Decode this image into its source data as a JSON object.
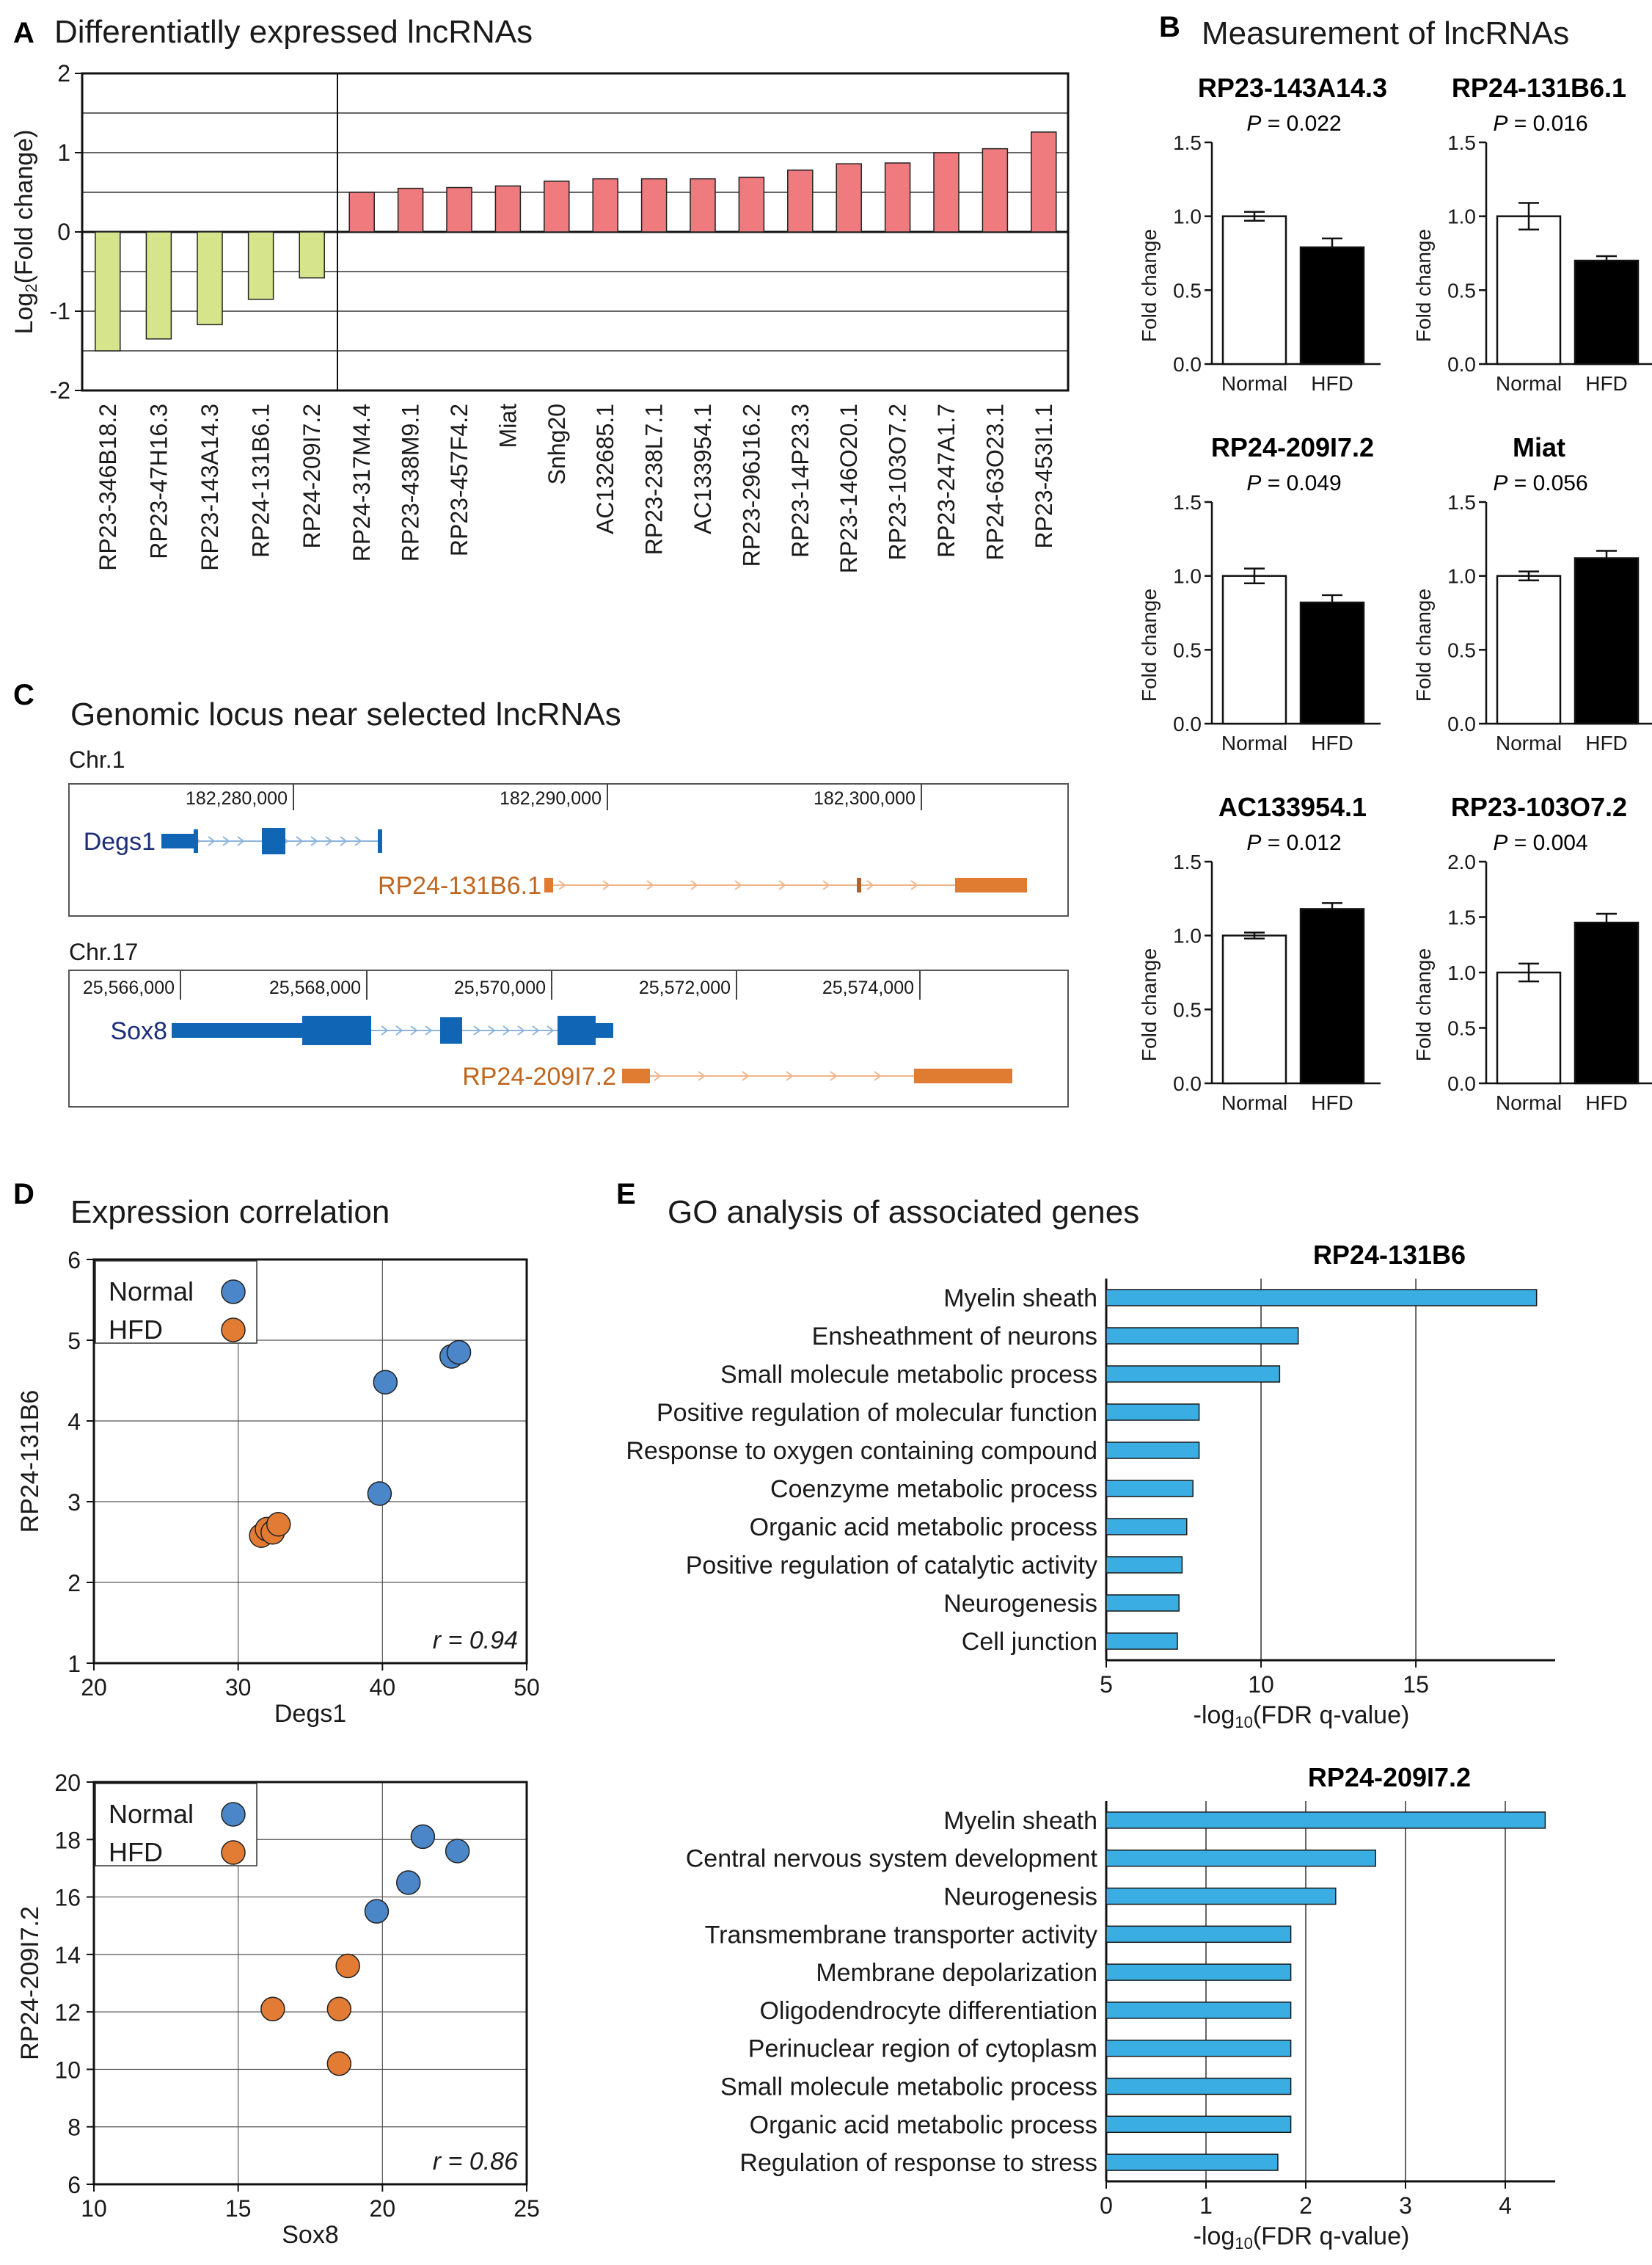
{
  "panel_a": {
    "letter": "A",
    "title": "Differentiatlly expressed lncRNAs"
  },
  "panel_b": {
    "letter": "B",
    "title": "Measurement of lncRNAs"
  },
  "panel_c": {
    "letter": "C",
    "title": "Genomic locus near selected lncRNAs"
  },
  "panel_d": {
    "letter": "D",
    "title": "Expression correlation"
  },
  "panel_e": {
    "letter": "E",
    "title": "GO analysis of associated genes"
  },
  "locus": {
    "chr1": {
      "chrom": "Chr.1",
      "coords": [
        "182,280,000",
        "182,290,000",
        "182,300,000"
      ],
      "gene": "Degs1",
      "lnc": "RP24-131B6.1"
    },
    "chr17": {
      "chrom": "Chr.17",
      "coords": [
        "25,566,000",
        "25,568,000",
        "25,570,000",
        "25,572,000",
        "25,574,000"
      ],
      "gene": "Sox8",
      "lnc": "RP24-209I7.2"
    }
  },
  "colors": {
    "down": "#d6e58c",
    "up": "#ef7b7e",
    "gene_blue": "#1066b5",
    "lnc_orange": "#e07b32",
    "normal": "#4a86c8",
    "hfd": "#e27b34",
    "go_bar": "#3aaee2",
    "gene_text": "#1c2e78",
    "lnc_text": "#c0661f"
  },
  "chart_data": [
    {
      "id": "A",
      "type": "bar",
      "title": "Differentiatlly expressed lncRNAs",
      "ylabel": "Log2(Fold change)",
      "ylim": [
        -2,
        2
      ],
      "yticks": [
        -2,
        -1,
        0,
        1,
        2
      ],
      "categories": [
        "RP23-346B18.2",
        "RP23-47H16.3",
        "RP23-143A14.3",
        "RP24-131B6.1",
        "RP24-209I7.2",
        "RP24-317M4.4",
        "RP23-438M9.1",
        "RP23-457F4.2",
        "Miat",
        "Snhg20",
        "AC132685.1",
        "RP23-238L7.1",
        "AC133954.1",
        "RP23-296J16.2",
        "RP23-14P23.3",
        "RP23-146O20.1",
        "RP23-103O7.2",
        "RP23-247A1.7",
        "RP24-63O23.1",
        "RP23-453I1.1"
      ],
      "values": [
        -1.5,
        -1.35,
        -1.17,
        -0.85,
        -0.58,
        0.5,
        0.55,
        0.56,
        0.58,
        0.64,
        0.67,
        0.67,
        0.67,
        0.69,
        0.78,
        0.86,
        0.87,
        1.0,
        1.05,
        1.26
      ]
    },
    {
      "id": "B",
      "type": "bar",
      "title": "Measurement of lncRNAs",
      "ylabel": "Fold change",
      "categories": [
        "Normal",
        "HFD"
      ],
      "subplots": [
        {
          "title": "RP23-143A14.3",
          "p": "= 0.022",
          "ymax": 1.5,
          "yticks": [
            "0.0",
            "0.5",
            "1.0",
            "1.5"
          ],
          "values": [
            1.0,
            0.79
          ],
          "errors": [
            0.03,
            0.06
          ]
        },
        {
          "title": "RP24-131B6.1",
          "p": "= 0.016",
          "ymax": 1.5,
          "yticks": [
            "0.0",
            "0.5",
            "1.0",
            "1.5"
          ],
          "values": [
            1.0,
            0.7
          ],
          "errors": [
            0.09,
            0.03
          ]
        },
        {
          "title": "RP24-209I7.2",
          "p": "= 0.049",
          "ymax": 1.5,
          "yticks": [
            "0.0",
            "0.5",
            "1.0",
            "1.5"
          ],
          "values": [
            1.0,
            0.82
          ],
          "errors": [
            0.05,
            0.05
          ]
        },
        {
          "title": "Miat",
          "p": "= 0.056",
          "ymax": 1.5,
          "yticks": [
            "0.0",
            "0.5",
            "1.0",
            "1.5"
          ],
          "values": [
            1.0,
            1.12
          ],
          "errors": [
            0.03,
            0.05
          ]
        },
        {
          "title": "AC133954.1",
          "p": "= 0.012",
          "ymax": 1.5,
          "yticks": [
            "0.0",
            "0.5",
            "1.0",
            "1.5"
          ],
          "values": [
            1.0,
            1.18
          ],
          "errors": [
            0.02,
            0.04
          ]
        },
        {
          "title": "RP23-103O7.2",
          "p": "= 0.004",
          "ymax": 2.0,
          "yticks": [
            "0.0",
            "0.5",
            "1.0",
            "1.5",
            "2.0"
          ],
          "values": [
            1.0,
            1.45
          ],
          "errors": [
            0.08,
            0.08
          ]
        }
      ]
    },
    {
      "id": "D1",
      "type": "scatter",
      "xlabel": "Degs1",
      "ylabel": "RP24-131B6",
      "xlim": [
        20,
        50
      ],
      "ylim": [
        1,
        6
      ],
      "xticks": [
        20,
        30,
        40,
        50
      ],
      "yticks": [
        1,
        2,
        3,
        4,
        5,
        6
      ],
      "r": "r = 0.94",
      "legend": [
        "Normal",
        "HFD"
      ],
      "series": [
        {
          "name": "Normal",
          "points": [
            [
              39.8,
              3.1
            ],
            [
              40.2,
              4.48
            ],
            [
              44.8,
              4.8
            ],
            [
              45.3,
              4.85
            ]
          ]
        },
        {
          "name": "HFD",
          "points": [
            [
              31.6,
              2.58
            ],
            [
              32.0,
              2.66
            ],
            [
              32.4,
              2.62
            ],
            [
              32.8,
              2.72
            ]
          ]
        }
      ]
    },
    {
      "id": "D2",
      "type": "scatter",
      "xlabel": "Sox8",
      "ylabel": "RP24-209I7.2",
      "xlim": [
        10,
        25
      ],
      "ylim": [
        6,
        20
      ],
      "xticks": [
        10,
        15,
        20,
        25
      ],
      "yticks": [
        6,
        8,
        10,
        12,
        14,
        16,
        18,
        20
      ],
      "r": "r = 0.86",
      "legend": [
        "Normal",
        "HFD"
      ],
      "series": [
        {
          "name": "Normal",
          "points": [
            [
              19.8,
              15.5
            ],
            [
              20.9,
              16.5
            ],
            [
              21.4,
              18.1
            ],
            [
              22.6,
              17.6
            ]
          ]
        },
        {
          "name": "HFD",
          "points": [
            [
              16.2,
              12.1
            ],
            [
              18.5,
              12.1
            ],
            [
              18.8,
              13.6
            ],
            [
              18.5,
              10.2
            ]
          ]
        }
      ]
    },
    {
      "id": "E1",
      "type": "bar",
      "orientation": "horizontal",
      "title": "RP24-131B6",
      "xlabel": "-log10(FDR q-value)",
      "xlim": [
        5,
        19.5
      ],
      "xticks": [
        5,
        10,
        15
      ],
      "categories": [
        "Myelin sheath",
        "Ensheathment of neurons",
        "Small molecule metabolic process",
        "Positive regulation of molecular function",
        "Response to oxygen containing compound",
        "Coenzyme metabolic process",
        "Organic acid metabolic process",
        "Positive regulation of catalytic activity",
        "Neurogenesis",
        "Cell junction"
      ],
      "values": [
        18.9,
        11.2,
        10.6,
        8.0,
        8.0,
        7.8,
        7.6,
        7.45,
        7.35,
        7.3
      ]
    },
    {
      "id": "E2",
      "type": "bar",
      "orientation": "horizontal",
      "title": "RP24-209I7.2",
      "xlabel": "-log10(FDR q-value)",
      "xlim": [
        0,
        4.5
      ],
      "xticks": [
        0,
        1,
        2,
        3,
        4
      ],
      "categories": [
        "Myelin sheath",
        "Central nervous system development",
        "Neurogenesis",
        "Transmembrane transporter activity",
        "Membrane depolarization",
        "Oligodendrocyte differentiation",
        "Perinuclear region of cytoplasm",
        "Small molecule metabolic process",
        "Organic acid metabolic process",
        "Regulation of response to stress"
      ],
      "values": [
        4.4,
        2.7,
        2.3,
        1.85,
        1.85,
        1.85,
        1.85,
        1.85,
        1.85,
        1.72
      ]
    }
  ]
}
